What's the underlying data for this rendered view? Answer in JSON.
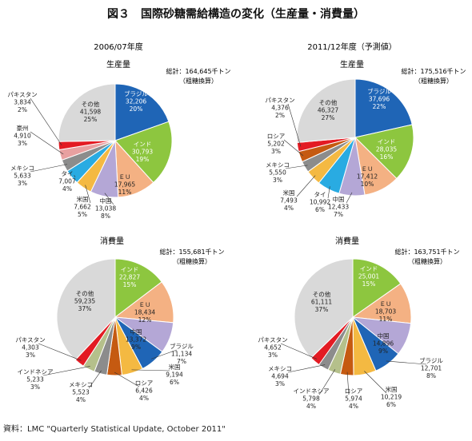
{
  "title": "図３　国際砂糖需給構造の変化（生産量・消費量）",
  "source": "資料：LMC \"Quarterly Statistical Update, October 2011\"",
  "colors": {
    "brazil": "#1f65b6",
    "india": "#8dc63f",
    "eu": "#f4b183",
    "china": "#b4a7d6",
    "usa": "#f4b942",
    "thailand": "#29abe2",
    "mexico": "#8c8c8c",
    "australia": "#e8a0a0",
    "pakistan": "#e31b23",
    "russia": "#c55a11",
    "indonesia": "#b5c08b",
    "others": "#d9d9d9"
  },
  "chart_data": [
    {
      "type": "pie",
      "period": "2006/07年度",
      "title": "生産量",
      "total": "総計：164,645千トン",
      "unit_note": "（粗糖換算）",
      "slices": [
        {
          "key": "brazil",
          "name": "ブラジル",
          "value": "32,206",
          "pct": "20%",
          "v": 32206
        },
        {
          "key": "india",
          "name": "インド",
          "value": "30,793",
          "pct": "19%",
          "v": 30793
        },
        {
          "key": "eu",
          "name": "ＥＵ",
          "value": "17,965",
          "pct": "11%",
          "v": 17965
        },
        {
          "key": "china",
          "name": "中国",
          "value": "13,038",
          "pct": "8%",
          "v": 13038
        },
        {
          "key": "usa",
          "name": "米国",
          "value": "7,662",
          "pct": "5%",
          "v": 7662
        },
        {
          "key": "thailand",
          "name": "タイ",
          "value": "7,007",
          "pct": "4%",
          "v": 7007
        },
        {
          "key": "mexico",
          "name": "メキシコ",
          "value": "5,633",
          "pct": "3%",
          "v": 5633
        },
        {
          "key": "australia",
          "name": "豪州",
          "value": "4,910",
          "pct": "3%",
          "v": 4910
        },
        {
          "key": "pakistan",
          "name": "パキスタン",
          "value": "3,834",
          "pct": "2%",
          "v": 3834
        },
        {
          "key": "others",
          "name": "その他",
          "value": "41,598",
          "pct": "25%",
          "v": 41598
        }
      ]
    },
    {
      "type": "pie",
      "period": "2011/12年度（予測値）",
      "title": "生産量",
      "total": "総計：175,516千トン",
      "unit_note": "（粗糖換算）",
      "slices": [
        {
          "key": "brazil",
          "name": "ブラジル",
          "value": "37,696",
          "pct": "22%",
          "v": 37696
        },
        {
          "key": "india",
          "name": "インド",
          "value": "28,035",
          "pct": "16%",
          "v": 28035
        },
        {
          "key": "eu",
          "name": "ＥＵ",
          "value": "17,412",
          "pct": "10%",
          "v": 17412
        },
        {
          "key": "china",
          "name": "中国",
          "value": "12,433",
          "pct": "7%",
          "v": 12433
        },
        {
          "key": "thailand",
          "name": "タイ",
          "value": "10,992",
          "pct": "6%",
          "v": 10992
        },
        {
          "key": "usa",
          "name": "米国",
          "value": "7,493",
          "pct": "4%",
          "v": 7493
        },
        {
          "key": "mexico",
          "name": "メキシコ",
          "value": "5,550",
          "pct": "3%",
          "v": 5550
        },
        {
          "key": "russia",
          "name": "ロシア",
          "value": "5,202",
          "pct": "3%",
          "v": 5202
        },
        {
          "key": "pakistan",
          "name": "パキスタン",
          "value": "4,376",
          "pct": "2%",
          "v": 4376
        },
        {
          "key": "others",
          "name": "その他",
          "value": "46,327",
          "pct": "27%",
          "v": 46327
        }
      ]
    },
    {
      "type": "pie",
      "title": "消費量",
      "total": "総計：155,681千トン",
      "unit_note": "（粗糖換算）",
      "slices": [
        {
          "key": "india",
          "name": "インド",
          "value": "22,827",
          "pct": "15%",
          "v": 22827
        },
        {
          "key": "eu",
          "name": "ＥＵ",
          "value": "18,434",
          "pct": "12%",
          "v": 18434
        },
        {
          "key": "china",
          "name": "中国",
          "value": "13,372",
          "pct": "9%",
          "v": 13372
        },
        {
          "key": "brazil",
          "name": "ブラジル",
          "value": "11,134",
          "pct": "7%",
          "v": 11134
        },
        {
          "key": "usa",
          "name": "米国",
          "value": "9,194",
          "pct": "6%",
          "v": 9194
        },
        {
          "key": "russia",
          "name": "ロシア",
          "value": "6,426",
          "pct": "4%",
          "v": 6426
        },
        {
          "key": "mexico",
          "name": "メキシコ",
          "value": "5,523",
          "pct": "4%",
          "v": 5523
        },
        {
          "key": "indonesia",
          "name": "インドネシア",
          "value": "5,233",
          "pct": "3%",
          "v": 5233
        },
        {
          "key": "pakistan",
          "name": "パキスタン",
          "value": "4,303",
          "pct": "3%",
          "v": 4303
        },
        {
          "key": "others",
          "name": "その他",
          "value": "59,235",
          "pct": "37%",
          "v": 59235
        }
      ]
    },
    {
      "type": "pie",
      "title": "消費量",
      "total": "総計：163,751千トン",
      "unit_note": "（粗糖換算）",
      "slices": [
        {
          "key": "india",
          "name": "インド",
          "value": "25,001",
          "pct": "15%",
          "v": 25001
        },
        {
          "key": "eu",
          "name": "ＥＵ",
          "value": "18,703",
          "pct": "11%",
          "v": 18703
        },
        {
          "key": "china",
          "name": "中国",
          "value": "14,896",
          "pct": "9%",
          "v": 14896
        },
        {
          "key": "brazil",
          "name": "ブラジル",
          "value": "12,701",
          "pct": "8%",
          "v": 12701
        },
        {
          "key": "usa",
          "name": "米国",
          "value": "10,219",
          "pct": "6%",
          "v": 10219
        },
        {
          "key": "russia",
          "name": "ロシア",
          "value": "5,974",
          "pct": "4%",
          "v": 5974
        },
        {
          "key": "indonesia",
          "name": "インドネシア",
          "value": "5,798",
          "pct": "4%",
          "v": 5798
        },
        {
          "key": "mexico",
          "name": "メキシコ",
          "value": "4,694",
          "pct": "3%",
          "v": 4694
        },
        {
          "key": "pakistan",
          "name": "パキスタン",
          "value": "4,652",
          "pct": "3%",
          "v": 4652
        },
        {
          "key": "others",
          "name": "その他",
          "value": "61,111",
          "pct": "37%",
          "v": 61111
        }
      ]
    }
  ]
}
